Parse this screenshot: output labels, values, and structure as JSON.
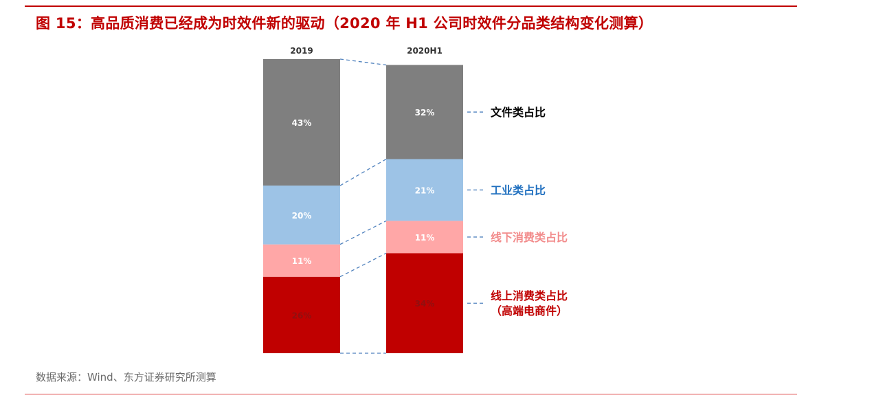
{
  "title": "图 15：高品质消费已经成为时效件新的驱动（2020 年 H1 公司时效件分品类结构变化测算）",
  "source": "数据来源：Wind、东方证券研究所测算",
  "colors": {
    "title": "#c00000",
    "文件类": "#7f7f7f",
    "工业类": "#9dc3e6",
    "线下消费类": "#ffa7a7",
    "线上消费类": "#c00000",
    "connector": "#4f81bd"
  },
  "chart_data": {
    "type": "bar",
    "stacked": true,
    "unit": "%",
    "categories": [
      "2019",
      "2020H1"
    ],
    "series": [
      {
        "name": "线上消费类占比",
        "legend_lines": [
          "线上消费类占比",
          "（高端电商件）"
        ],
        "color": "#c00000",
        "label_color": "#c00000",
        "values": [
          26,
          34
        ]
      },
      {
        "name": "线下消费类占比",
        "legend_lines": [
          "线下消费类占比"
        ],
        "color": "#ffa7a7",
        "label_color": "#f28b8b",
        "values": [
          11,
          11
        ]
      },
      {
        "name": "工业类占比",
        "legend_lines": [
          "工业类占比"
        ],
        "color": "#9dc3e6",
        "label_color": "#1f6fbf",
        "values": [
          20,
          21
        ]
      },
      {
        "name": "文件类占比",
        "legend_lines": [
          "文件类占比"
        ],
        "color": "#7f7f7f",
        "label_color": "#000000",
        "values": [
          43,
          32
        ]
      }
    ],
    "ylim": [
      0,
      100
    ],
    "grid": false,
    "legend_placement": "right"
  }
}
